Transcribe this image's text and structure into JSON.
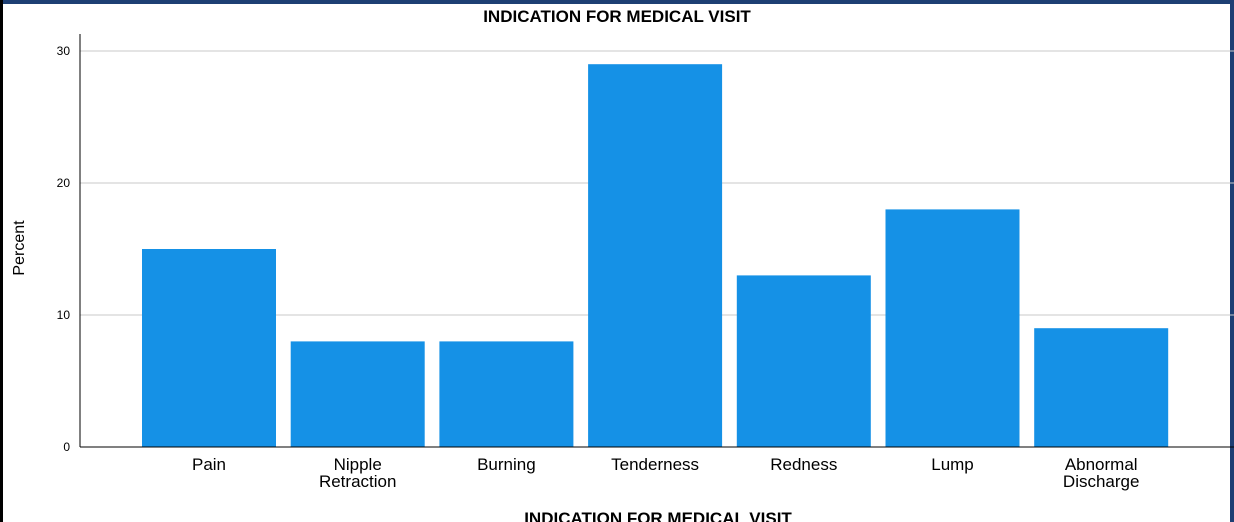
{
  "chart_data": {
    "type": "bar",
    "title": "INDICATION FOR MEDICAL VISIT",
    "xlabel": "INDICATION FOR MEDICAL VISIT",
    "ylabel": "Percent",
    "categories": [
      "Pain",
      "Nipple Retraction",
      "Burning",
      "Tenderness",
      "Redness",
      "Lump",
      "Abnormal Discharge"
    ],
    "category_lines": [
      [
        "Pain"
      ],
      [
        "Nipple",
        "Retraction"
      ],
      [
        "Burning"
      ],
      [
        "Tenderness"
      ],
      [
        "Redness"
      ],
      [
        "Lump"
      ],
      [
        "Abnormal",
        "Discharge"
      ]
    ],
    "values": [
      15,
      8,
      8,
      29,
      13,
      18,
      9
    ],
    "ylim": [
      0,
      30
    ],
    "yticks": [
      0,
      10,
      20,
      30
    ],
    "grid": true,
    "bar_color": "#1591e6"
  }
}
